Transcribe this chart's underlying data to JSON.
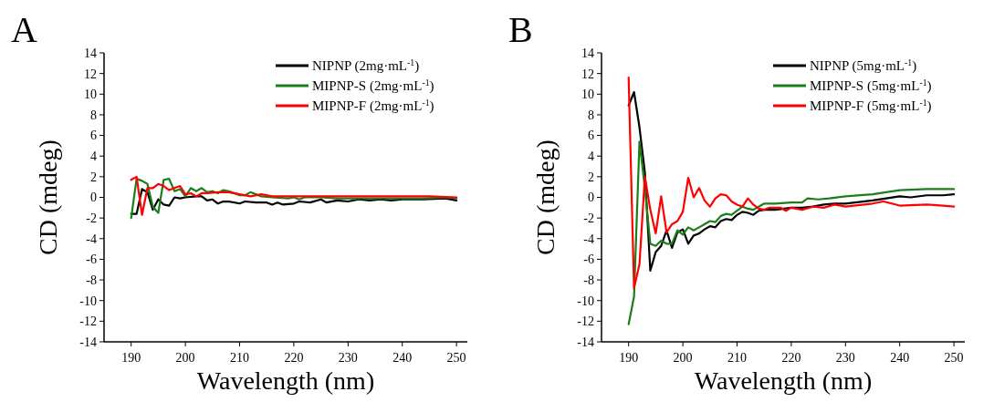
{
  "chart_data": [
    {
      "type": "line",
      "title": "A",
      "xlabel": "Wavelength (nm)",
      "ylabel": "CD (mdeg)",
      "xlim": [
        185,
        252
      ],
      "xticks": [
        190,
        200,
        210,
        220,
        230,
        240,
        250
      ],
      "ylim": [
        -14,
        14
      ],
      "yticks": [
        -14,
        -12,
        -10,
        -8,
        -6,
        -4,
        -2,
        0,
        2,
        4,
        6,
        8,
        10,
        12,
        14
      ],
      "legend": "top right",
      "grid": false,
      "series": [
        {
          "name": "NIPNP (2mg·mL$^{-1}$)",
          "color": "#000000",
          "x": [
            190,
            191,
            192,
            193,
            194,
            195,
            196,
            197,
            198,
            199,
            200,
            202,
            203,
            204,
            205,
            206,
            207,
            208,
            210,
            211,
            213,
            215,
            216,
            217,
            218,
            220,
            221,
            223,
            225,
            226,
            228,
            230,
            232,
            234,
            236,
            238,
            240,
            244,
            248,
            250
          ],
          "values": [
            -1.6,
            -1.6,
            0.8,
            0.5,
            -1.2,
            -0.2,
            -0.7,
            -0.8,
            0,
            -0.1,
            0,
            0.1,
            0.1,
            -0.3,
            -0.2,
            -0.6,
            -0.4,
            -0.4,
            -0.6,
            -0.4,
            -0.5,
            -0.5,
            -0.7,
            -0.5,
            -0.7,
            -0.6,
            -0.4,
            -0.5,
            -0.2,
            -0.5,
            -0.3,
            -0.4,
            -0.2,
            -0.3,
            -0.2,
            -0.3,
            -0.2,
            -0.2,
            -0.1,
            -0.3
          ]
        },
        {
          "name": "MIPNP-S (2mg·mL$^{-1}$)",
          "color": "#1a7f1a",
          "x": [
            190,
            191,
            192,
            193,
            194,
            195,
            196,
            197,
            198,
            199,
            200,
            201,
            202,
            203,
            204,
            205,
            206,
            207,
            208,
            209,
            210,
            211,
            212,
            213,
            214,
            216,
            219,
            220,
            221,
            222,
            225,
            228,
            232,
            236,
            240,
            244,
            248,
            250
          ],
          "values": [
            -2.0,
            1.8,
            1.6,
            1.3,
            -0.9,
            -1.5,
            1.7,
            1.8,
            0.6,
            0.8,
            0.1,
            0.9,
            0.6,
            0.9,
            0.5,
            0.6,
            0.4,
            0.7,
            0.6,
            0.4,
            0.2,
            0.2,
            0.5,
            0.3,
            0.1,
            0,
            -0.1,
            0,
            -0.2,
            0,
            0,
            -0.1,
            -0.1,
            -0.1,
            -0.1,
            -0.1,
            0,
            -0.1
          ]
        },
        {
          "name": "MIPNP-F (2mg·mL$^{-1}$)",
          "color": "#ff0000",
          "x": [
            190,
            191,
            192,
            193,
            194,
            195,
            196,
            197,
            198,
            199,
            200,
            201,
            202,
            203,
            204,
            206,
            208,
            210,
            212,
            214,
            216,
            220,
            225,
            230,
            235,
            240,
            245,
            250
          ],
          "values": [
            1.7,
            2.0,
            -1.7,
            0.9,
            0.9,
            1.3,
            1.1,
            0.7,
            0.9,
            1.1,
            0.3,
            0.4,
            0.1,
            0.4,
            0.4,
            0.5,
            0.5,
            0.3,
            0.1,
            0.3,
            0.1,
            0.1,
            0.1,
            0.1,
            0.1,
            0.1,
            0.1,
            0
          ]
        }
      ]
    },
    {
      "type": "line",
      "title": "B",
      "xlabel": "Wavelength (nm)",
      "ylabel": "CD (mdeg)",
      "xlim": [
        185,
        252
      ],
      "xticks": [
        190,
        200,
        210,
        220,
        230,
        240,
        250
      ],
      "ylim": [
        -14,
        14
      ],
      "yticks": [
        -14,
        -12,
        -10,
        -8,
        -6,
        -4,
        -2,
        0,
        2,
        4,
        6,
        8,
        10,
        12,
        14
      ],
      "legend": "top right",
      "grid": false,
      "series": [
        {
          "name": "NIPNP (5mg·mL$^{-1}$)",
          "color": "#000000",
          "x": [
            190,
            191,
            192,
            193,
            194,
            195,
            196,
            197,
            198,
            199,
            200,
            201,
            202,
            203,
            204,
            205,
            206,
            207,
            208,
            209,
            210,
            211,
            212,
            213,
            214,
            215,
            217,
            220,
            222,
            224,
            226,
            228,
            230,
            235,
            240,
            242,
            245,
            248,
            250
          ],
          "values": [
            8.9,
            10.2,
            6.8,
            2.4,
            -7.1,
            -5.3,
            -4.7,
            -3.2,
            -4.9,
            -3.4,
            -3.1,
            -4.5,
            -3.7,
            -3.5,
            -3.1,
            -2.8,
            -2.9,
            -2.3,
            -2.1,
            -2.2,
            -1.7,
            -1.4,
            -1.5,
            -1.7,
            -1.3,
            -1.2,
            -1.2,
            -1.0,
            -1.0,
            -0.9,
            -0.7,
            -0.6,
            -0.6,
            -0.3,
            0.1,
            0,
            0.2,
            0.2,
            0.3
          ]
        },
        {
          "name": "MIPNP-S (5mg·mL$^{-1}$)",
          "color": "#1a7f1a",
          "x": [
            190,
            191,
            192,
            193,
            194,
            195,
            196,
            197,
            198,
            199,
            200,
            201,
            202,
            203,
            204,
            205,
            206,
            207,
            208,
            209,
            210,
            211,
            212,
            213,
            214,
            215,
            217,
            220,
            222,
            223,
            225,
            227,
            230,
            235,
            240,
            245,
            250
          ],
          "values": [
            -12.3,
            -9.6,
            5.4,
            0.9,
            -4.5,
            -4.7,
            -4.2,
            -4.5,
            -4.5,
            -3.2,
            -3.6,
            -2.9,
            -3.2,
            -2.9,
            -2.6,
            -2.3,
            -2.4,
            -1.8,
            -1.6,
            -1.7,
            -1.3,
            -0.9,
            -1.1,
            -1.2,
            -0.9,
            -0.6,
            -0.6,
            -0.5,
            -0.5,
            -0.1,
            -0.2,
            -0.1,
            0.1,
            0.3,
            0.7,
            0.8,
            0.8
          ]
        },
        {
          "name": "MIPNP-F (5mg·mL$^{-1}$)",
          "color": "#ff0000",
          "x": [
            190,
            191,
            192,
            193,
            194,
            195,
            196,
            197,
            198,
            199,
            200,
            201,
            202,
            203,
            204,
            205,
            206,
            207,
            208,
            209,
            210,
            211,
            212,
            213,
            214,
            215,
            216,
            218,
            219,
            220,
            222,
            224,
            226,
            228,
            230,
            235,
            237,
            240,
            245,
            248,
            250
          ],
          "values": [
            11.6,
            -8.8,
            -6.5,
            2.0,
            -1.2,
            -3.5,
            0.1,
            -3.4,
            -2.6,
            -2.3,
            -1.4,
            1.9,
            0,
            0.9,
            -0.3,
            -0.9,
            -0.1,
            0.3,
            0.2,
            -0.4,
            -0.7,
            -0.9,
            -0.1,
            -0.7,
            -1.1,
            -1.2,
            -1.0,
            -1.0,
            -1.3,
            -1.0,
            -1.2,
            -0.9,
            -1.0,
            -0.7,
            -0.9,
            -0.6,
            -0.4,
            -0.8,
            -0.7,
            -0.8,
            -0.9
          ]
        }
      ]
    }
  ]
}
